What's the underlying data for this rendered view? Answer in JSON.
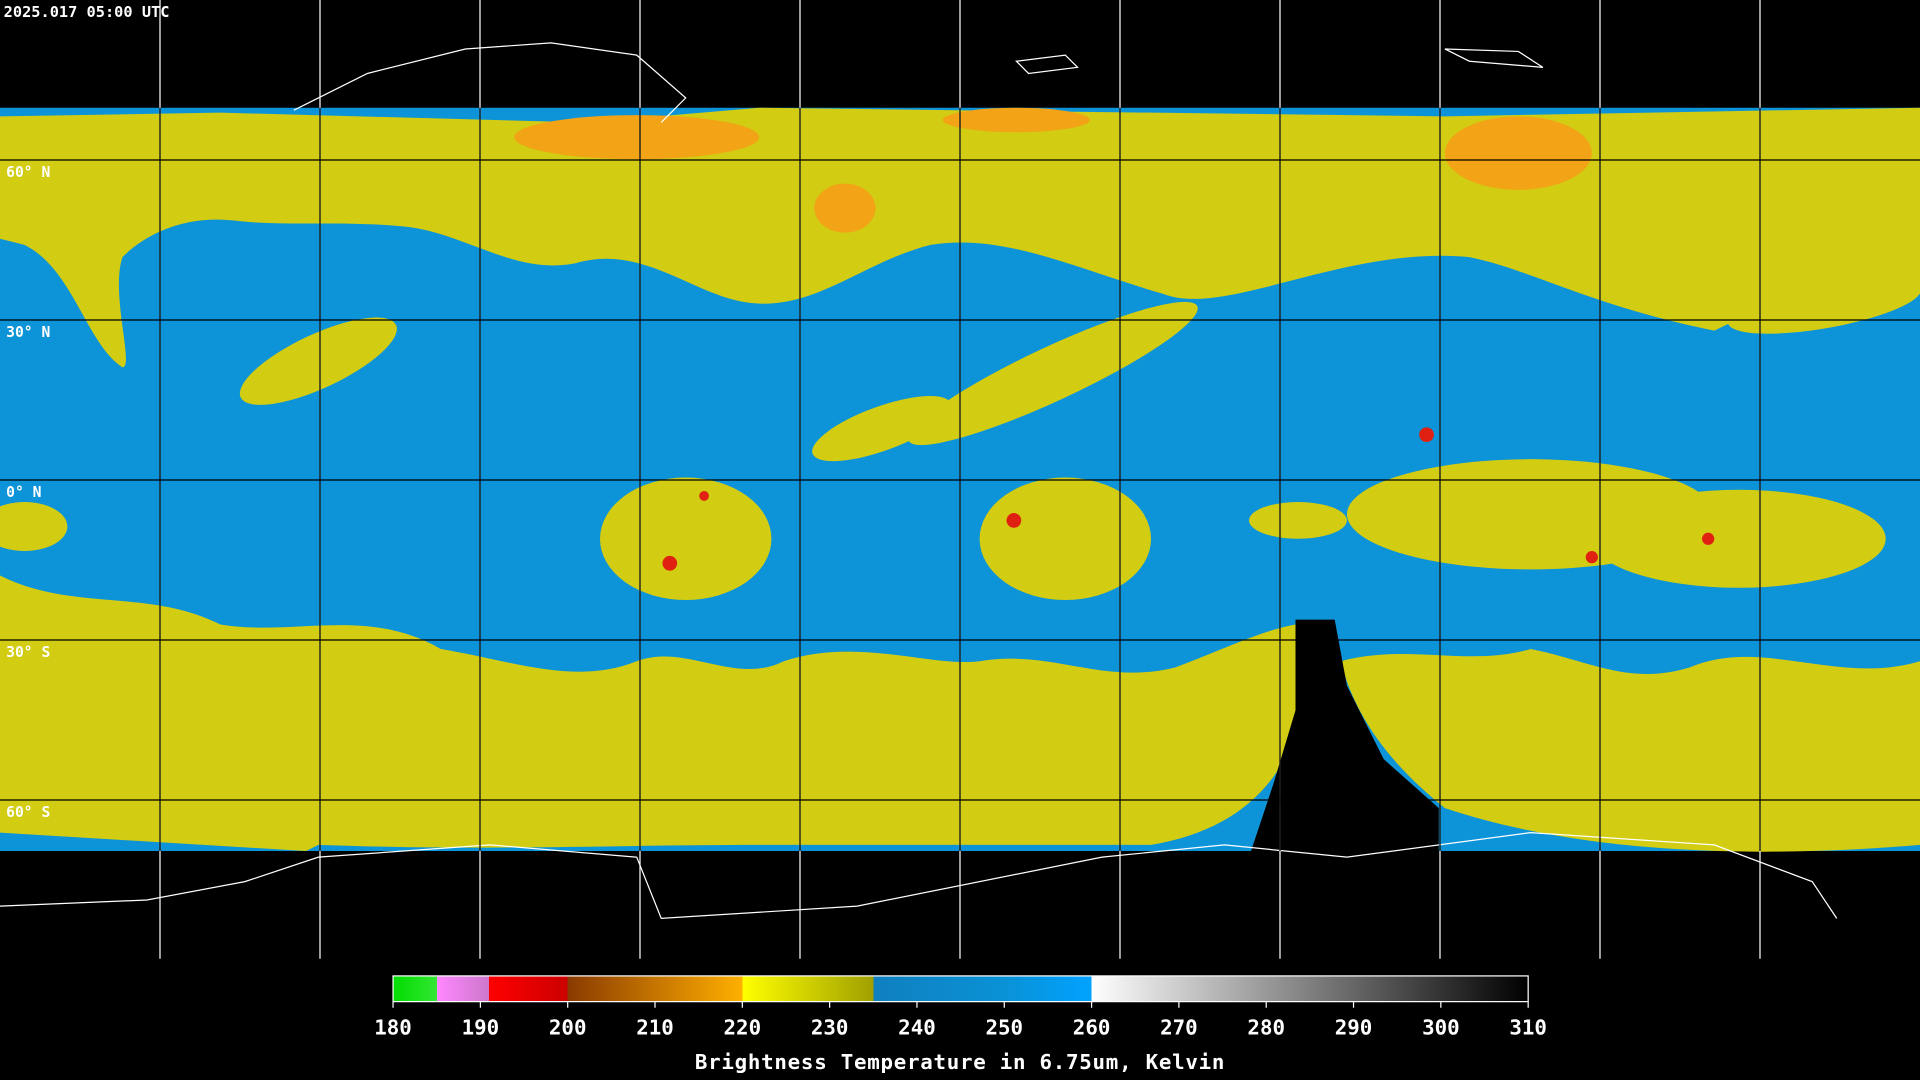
{
  "header": {
    "timestamp": "2025.017 05:00 UTC"
  },
  "grid": {
    "lat_labels": [
      "60° N",
      "30° N",
      "0° N",
      "30° S",
      "60° S"
    ]
  },
  "colorbar": {
    "range": [
      180,
      310
    ],
    "ticks": [
      180,
      190,
      200,
      210,
      220,
      230,
      240,
      250,
      260,
      270,
      280,
      290,
      300,
      310
    ],
    "label": "Brightness Temperature in 6.75um, Kelvin"
  }
}
